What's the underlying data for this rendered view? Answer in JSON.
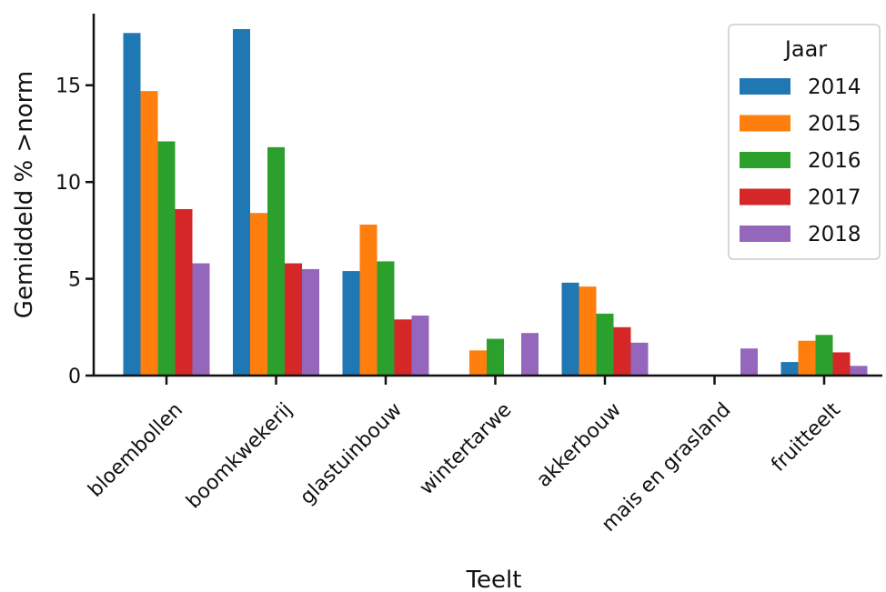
{
  "chart_data": {
    "type": "bar",
    "xlabel": "Teelt",
    "ylabel": "Gemiddeld % >norm",
    "ylim": [
      0,
      18.7
    ],
    "yticks": [
      0,
      5,
      10,
      15
    ],
    "categories": [
      "bloembollen",
      "boomkwekerij",
      "glastuinbouw",
      "wintertarwe",
      "akkerbouw",
      "mais en grasland",
      "fruitteelt"
    ],
    "legend": {
      "title": "Jaar",
      "position": "top-right"
    },
    "series": [
      {
        "name": "2014",
        "color": "#1f77b4",
        "values": [
          17.7,
          17.9,
          5.4,
          null,
          4.8,
          null,
          0.7
        ]
      },
      {
        "name": "2015",
        "color": "#ff7f0e",
        "values": [
          14.7,
          8.4,
          7.8,
          1.3,
          4.6,
          null,
          1.8
        ]
      },
      {
        "name": "2016",
        "color": "#2ca02c",
        "values": [
          12.1,
          11.8,
          5.9,
          1.9,
          3.2,
          null,
          2.1
        ]
      },
      {
        "name": "2017",
        "color": "#d62728",
        "values": [
          8.6,
          5.8,
          2.9,
          null,
          2.5,
          null,
          1.2
        ]
      },
      {
        "name": "2018",
        "color": "#9467bd",
        "values": [
          5.8,
          5.5,
          3.1,
          2.2,
          1.7,
          1.4,
          0.5
        ]
      }
    ]
  }
}
